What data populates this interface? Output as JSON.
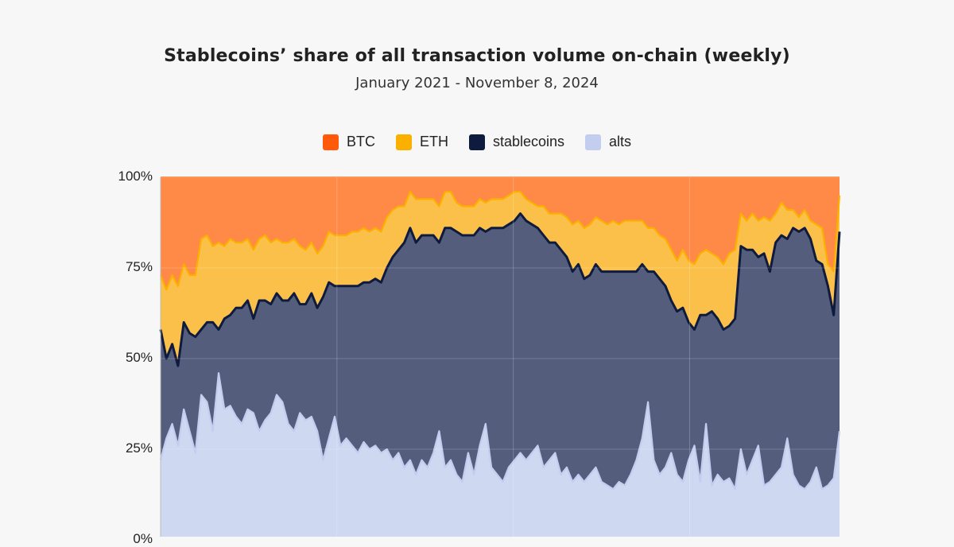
{
  "chart_data": {
    "type": "area",
    "stacked": true,
    "normalized": true,
    "title": "Stablecoins’ share of all transaction volume on-chain (weekly)",
    "subtitle": "January 2021 - November 8, 2024",
    "xlabel": "",
    "ylabel": "",
    "ylim": [
      0,
      100
    ],
    "yticks": [
      "100%",
      "75%",
      "50%",
      "25%",
      "0%"
    ],
    "ytick_values": [
      100,
      75,
      50,
      25,
      0
    ],
    "legend_position": "top-center",
    "series": [
      {
        "name": "alts",
        "color": "#c9d3f0",
        "values": [
          22,
          28,
          32,
          26,
          36,
          30,
          24,
          40,
          38,
          30,
          46,
          36,
          37,
          34,
          32,
          36,
          35,
          30,
          33,
          35,
          40,
          38,
          32,
          30,
          35,
          33,
          34,
          30,
          22,
          28,
          34,
          26,
          28,
          26,
          24,
          27,
          25,
          26,
          24,
          25,
          22,
          24,
          20,
          22,
          18,
          22,
          20,
          24,
          30,
          20,
          22,
          18,
          16,
          24,
          18,
          26,
          32,
          20,
          18,
          16,
          20,
          22,
          24,
          22,
          24,
          26,
          20,
          22,
          24,
          18,
          20,
          16,
          18,
          16,
          18,
          20,
          16,
          15,
          14,
          16,
          15,
          18,
          22,
          28,
          38,
          22,
          18,
          20,
          24,
          18,
          16,
          22,
          26,
          16,
          32,
          15,
          18,
          16,
          17,
          14,
          25,
          18,
          22,
          26,
          15,
          16,
          18,
          20,
          28,
          18,
          15,
          14,
          16,
          20,
          14,
          15,
          17,
          30
        ]
      },
      {
        "name": "stablecoins",
        "color": "#0e1b3f",
        "values": [
          36,
          22,
          22,
          22,
          24,
          27,
          32,
          18,
          22,
          30,
          12,
          25,
          25,
          30,
          32,
          30,
          26,
          36,
          33,
          30,
          28,
          28,
          34,
          38,
          30,
          32,
          34,
          34,
          45,
          43,
          36,
          44,
          42,
          44,
          46,
          44,
          46,
          46,
          47,
          50,
          56,
          56,
          62,
          64,
          64,
          62,
          64,
          60,
          52,
          66,
          64,
          67,
          68,
          60,
          66,
          60,
          53,
          66,
          68,
          70,
          67,
          66,
          66,
          66,
          63,
          60,
          64,
          60,
          58,
          62,
          58,
          58,
          58,
          56,
          55,
          56,
          58,
          59,
          60,
          58,
          59,
          56,
          52,
          48,
          36,
          52,
          54,
          50,
          42,
          45,
          48,
          38,
          32,
          46,
          30,
          48,
          43,
          42,
          42,
          47,
          56,
          62,
          58,
          52,
          64,
          58,
          64,
          64,
          55,
          68,
          70,
          72,
          67,
          57,
          62,
          55,
          45,
          55
        ]
      },
      {
        "name": "ETH",
        "color": "#fbb935",
        "values": [
          15,
          19,
          19,
          22,
          16,
          16,
          17,
          25,
          24,
          21,
          24,
          20,
          21,
          18,
          18,
          17,
          19,
          17,
          18,
          17,
          15,
          16,
          16,
          15,
          16,
          15,
          14,
          15,
          14,
          14,
          14,
          14,
          14,
          15,
          15,
          15,
          14,
          14,
          14,
          14,
          13,
          12,
          10,
          10,
          12,
          10,
          10,
          10,
          10,
          10,
          10,
          8,
          8,
          8,
          8,
          8,
          8,
          8,
          8,
          8,
          8,
          8,
          6,
          6,
          6,
          6,
          8,
          8,
          8,
          10,
          11,
          13,
          12,
          14,
          14,
          13,
          14,
          13,
          14,
          13,
          14,
          14,
          14,
          12,
          12,
          12,
          12,
          13,
          14,
          14,
          16,
          17,
          18,
          17,
          18,
          16,
          17,
          18,
          20,
          19,
          9,
          8,
          10,
          10,
          10,
          14,
          8,
          9,
          8,
          5,
          4,
          5,
          5,
          10,
          10,
          6,
          12,
          10
        ]
      },
      {
        "name": "BTC",
        "color": "#ff5a0a",
        "values": [
          27,
          31,
          27,
          30,
          24,
          27,
          27,
          17,
          16,
          19,
          18,
          19,
          17,
          18,
          18,
          17,
          20,
          17,
          16,
          18,
          17,
          18,
          18,
          17,
          19,
          20,
          18,
          21,
          19,
          15,
          16,
          16,
          16,
          15,
          15,
          14,
          15,
          14,
          15,
          11,
          9,
          8,
          8,
          4,
          6,
          6,
          6,
          6,
          8,
          4,
          4,
          7,
          8,
          8,
          8,
          6,
          7,
          6,
          6,
          6,
          5,
          4,
          4,
          6,
          7,
          8,
          8,
          10,
          10,
          10,
          11,
          13,
          12,
          14,
          13,
          11,
          12,
          13,
          12,
          13,
          12,
          12,
          12,
          12,
          14,
          14,
          16,
          17,
          20,
          23,
          20,
          23,
          24,
          21,
          20,
          21,
          22,
          24,
          21,
          20,
          10,
          12,
          10,
          12,
          11,
          12,
          10,
          7,
          9,
          9,
          11,
          9,
          12,
          13,
          14,
          24,
          26,
          5
        ]
      }
    ]
  }
}
